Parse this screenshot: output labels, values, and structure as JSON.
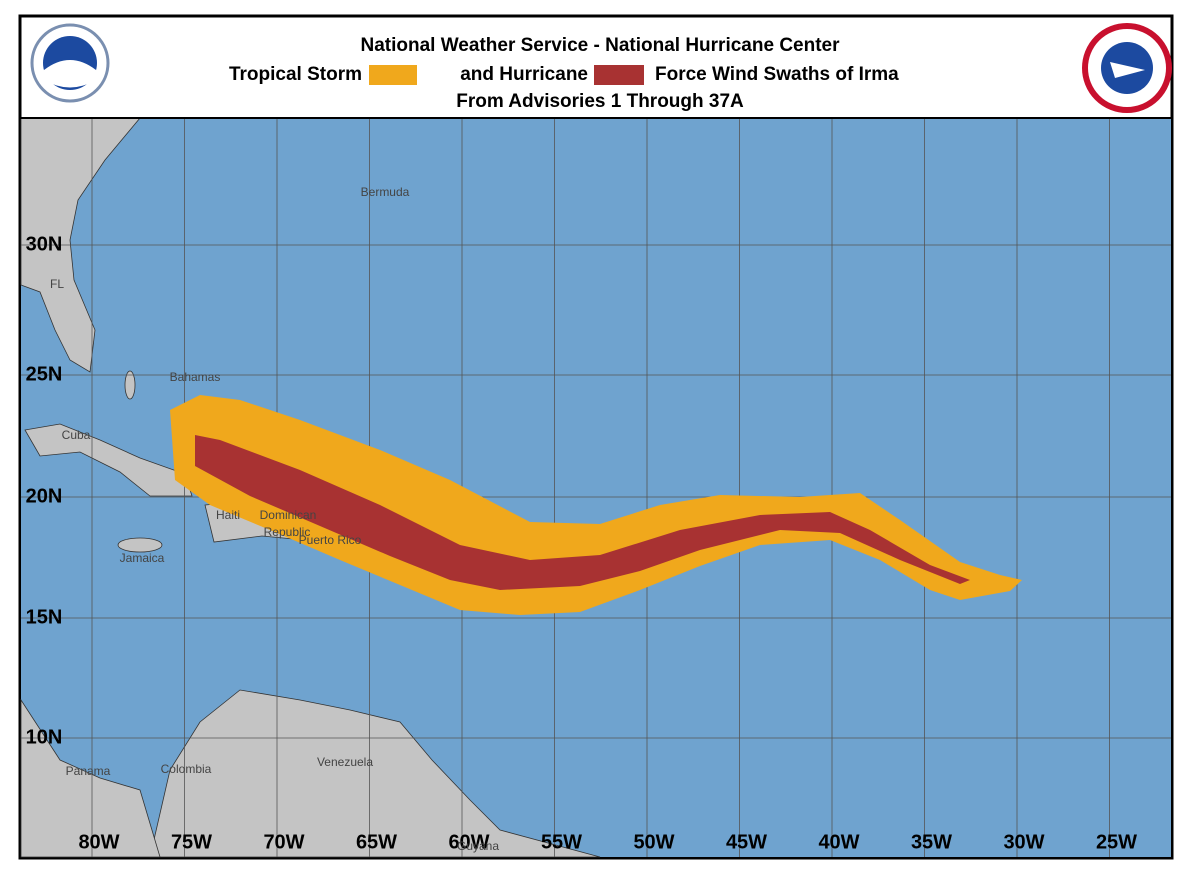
{
  "header": {
    "title": "National Weather Service - National Hurricane Center",
    "legend": [
      {
        "label": "Tropical Storm",
        "color": "#f0a81c"
      },
      {
        "label": "and Hurricane",
        "color": "#a83232"
      }
    ],
    "legend_suffix": "Force Wind Swaths of Irma",
    "subtitle": "From Advisories 1 Through 37A"
  },
  "map": {
    "ocean_color": "#6fa3cf",
    "land_color": "#c4c4c4",
    "longitudes": [
      "80W",
      "75W",
      "70W",
      "65W",
      "60W",
      "55W",
      "50W",
      "45W",
      "40W",
      "35W",
      "30W",
      "25W"
    ],
    "latitudes": [
      "30N",
      "25N",
      "20N",
      "15N",
      "10N"
    ],
    "places": [
      "Bermuda",
      "FL",
      "Bahamas",
      "Cuba",
      "Haiti",
      "Dominican",
      "Republic",
      "Puerto Rico",
      "Jamaica",
      "Panama",
      "Colombia",
      "Venezuela",
      "Guyana"
    ]
  }
}
